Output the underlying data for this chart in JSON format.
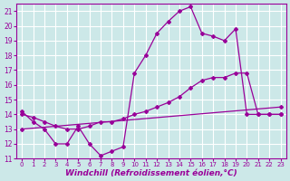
{
  "bg_color": "#cce8e8",
  "line_color": "#990099",
  "grid_color": "#ffffff",
  "xlabel": "Windchill (Refroidissement éolien,°C)",
  "xlabel_fontsize": 6.5,
  "tick_fontsize": 6,
  "xlim": [
    -0.5,
    23.5
  ],
  "ylim": [
    11,
    21.5
  ],
  "yticks": [
    11,
    12,
    13,
    14,
    15,
    16,
    17,
    18,
    19,
    20,
    21
  ],
  "xticks": [
    0,
    1,
    2,
    3,
    4,
    5,
    6,
    7,
    8,
    9,
    10,
    11,
    12,
    13,
    14,
    15,
    16,
    17,
    18,
    19,
    20,
    21,
    22,
    23
  ],
  "series1_x": [
    0,
    1,
    2,
    3,
    4,
    5,
    6,
    7,
    8,
    9,
    10,
    11,
    12,
    13,
    14,
    15,
    16,
    17,
    18,
    19,
    20,
    21,
    22,
    23
  ],
  "series1_y": [
    14.2,
    13.5,
    13.0,
    12.0,
    12.0,
    13.2,
    12.0,
    11.2,
    11.5,
    11.8,
    16.8,
    18.0,
    19.5,
    20.3,
    21.0,
    21.3,
    19.5,
    19.3,
    19.0,
    19.8,
    14.0,
    14.0,
    14.0,
    14.0
  ],
  "series2_x": [
    0,
    1,
    2,
    3,
    4,
    5,
    6,
    7,
    8,
    9,
    10,
    11,
    12,
    13,
    14,
    15,
    16,
    17,
    18,
    19,
    20,
    21,
    22,
    23
  ],
  "series2_y": [
    14.0,
    13.8,
    13.5,
    13.2,
    13.0,
    13.0,
    13.2,
    13.5,
    13.5,
    13.7,
    14.0,
    14.2,
    14.5,
    14.8,
    15.2,
    15.8,
    16.3,
    16.5,
    16.5,
    16.8,
    16.8,
    14.0,
    14.0,
    14.0
  ],
  "series3_x": [
    0,
    23
  ],
  "series3_y": [
    13.0,
    14.5
  ]
}
